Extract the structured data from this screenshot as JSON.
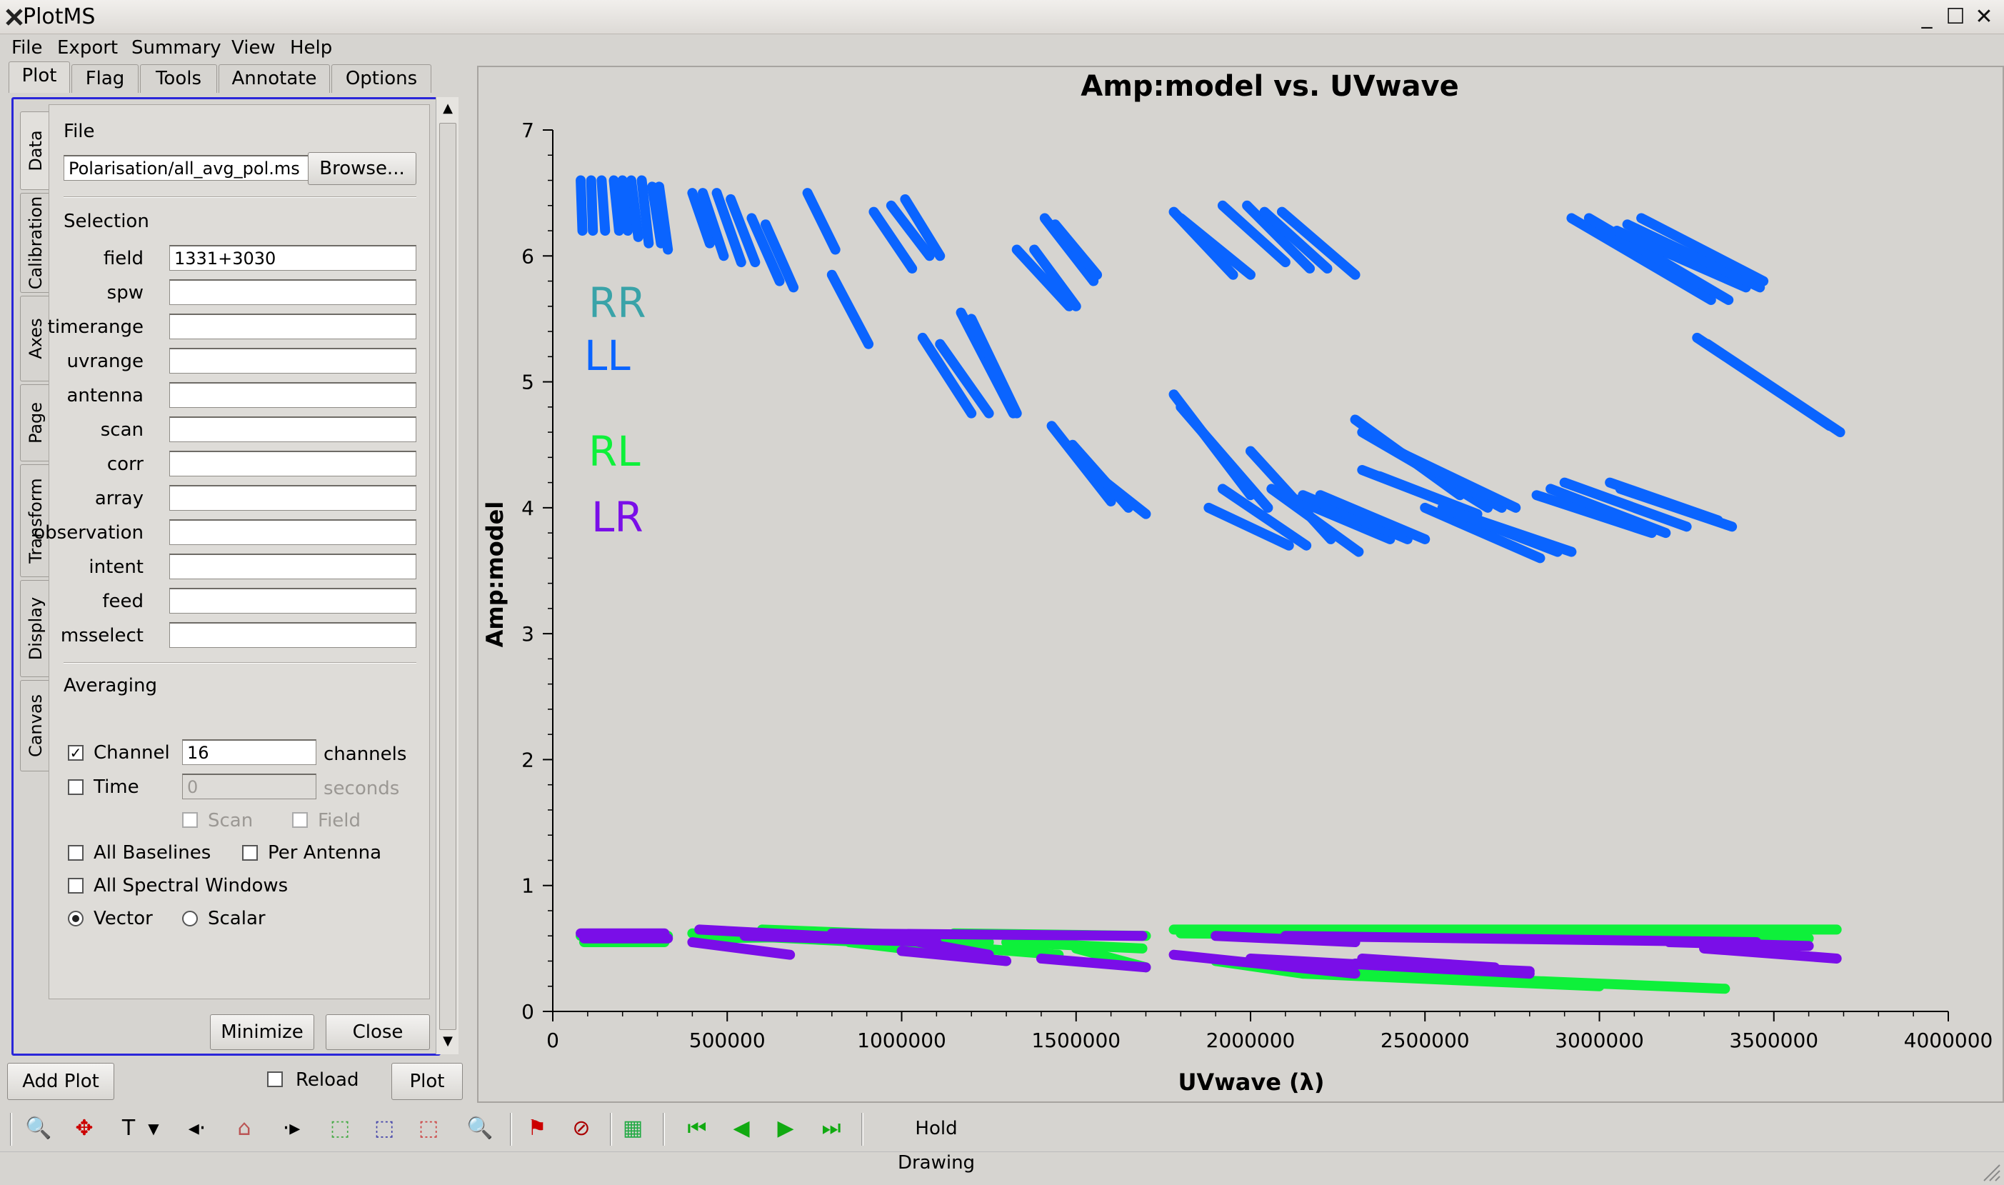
{
  "window": {
    "title": "PlotMS",
    "minimize": "_",
    "maximize": "☐",
    "close": "✕"
  },
  "menu": [
    "File",
    "Export",
    "Summary",
    "View",
    "Help"
  ],
  "tabs": [
    "Plot",
    "Flag",
    "Tools",
    "Annotate",
    "Options"
  ],
  "vertical_tabs": [
    "Data",
    "Calibration",
    "Axes",
    "Page",
    "Transform",
    "Display",
    "Canvas"
  ],
  "data_panel": {
    "file_heading": "File",
    "file_value": "Polarisation/all_avg_pol.ms",
    "browse_label": "Browse...",
    "selection_heading": "Selection",
    "selection_fields": [
      {
        "label": "field",
        "value": "1331+3030"
      },
      {
        "label": "spw",
        "value": ""
      },
      {
        "label": "timerange",
        "value": ""
      },
      {
        "label": "uvrange",
        "value": ""
      },
      {
        "label": "antenna",
        "value": ""
      },
      {
        "label": "scan",
        "value": ""
      },
      {
        "label": "corr",
        "value": ""
      },
      {
        "label": "array",
        "value": ""
      },
      {
        "label": "observation",
        "value": ""
      },
      {
        "label": "intent",
        "value": ""
      },
      {
        "label": "feed",
        "value": ""
      },
      {
        "label": "msselect",
        "value": ""
      }
    ],
    "averaging_heading": "Averaging",
    "channel": {
      "label": "Channel",
      "checked": true,
      "value": "16",
      "unit": "channels"
    },
    "time": {
      "label": "Time",
      "checked": false,
      "value": "0",
      "unit": "seconds"
    },
    "scan_label": "Scan",
    "field_label": "Field",
    "all_baselines_label": "All Baselines",
    "per_antenna_label": "Per Antenna",
    "all_spw_label": "All Spectral Windows",
    "vector_label": "Vector",
    "scalar_label": "Scalar",
    "minimize_label": "Minimize",
    "close_label": "Close"
  },
  "bottom": {
    "add_plot_label": "Add Plot",
    "reload_label": "Reload",
    "plot_label": "Plot"
  },
  "toolbar": {
    "hold_drawing_label": "Hold Drawing"
  },
  "colors": {
    "RR": "#3aa3a8",
    "LL": "#0a64ff",
    "RL": "#0ef03a",
    "LR": "#7a0ee8"
  },
  "chart_data": {
    "type": "scatter",
    "title": "Amp:model vs. UVwave",
    "xlabel": "UVwave (λ)",
    "ylabel": "Amp:model",
    "xlim": [
      0,
      4000000
    ],
    "ylim": [
      0,
      7
    ],
    "xticks": [
      0,
      500000,
      1000000,
      1500000,
      2000000,
      2500000,
      3000000,
      3500000,
      4000000
    ],
    "yticks": [
      0,
      1,
      2,
      3,
      4,
      5,
      6,
      7
    ],
    "grid": false,
    "legend": {
      "placement": "upper-left inside",
      "entries": [
        "RR",
        "LL",
        "RL",
        "LR"
      ]
    },
    "series": [
      {
        "name": "LL",
        "color": "#0a64ff",
        "segments": [
          [
            80000,
            6.6,
            85000,
            6.2
          ],
          [
            110000,
            6.6,
            115000,
            6.2
          ],
          [
            140000,
            6.6,
            150000,
            6.2
          ],
          [
            175000,
            6.6,
            190000,
            6.2
          ],
          [
            200000,
            6.6,
            215000,
            6.2
          ],
          [
            225000,
            6.6,
            245000,
            6.15
          ],
          [
            255000,
            6.6,
            275000,
            6.1
          ],
          [
            285000,
            6.55,
            310000,
            6.1
          ],
          [
            305000,
            6.55,
            330000,
            6.05
          ],
          [
            400000,
            6.5,
            450000,
            6.1
          ],
          [
            430000,
            6.5,
            490000,
            6.0
          ],
          [
            470000,
            6.5,
            540000,
            5.95
          ],
          [
            510000,
            6.45,
            580000,
            5.95
          ],
          [
            570000,
            6.3,
            650000,
            5.8
          ],
          [
            610000,
            6.25,
            690000,
            5.75
          ],
          [
            730000,
            6.5,
            810000,
            6.05
          ],
          [
            800000,
            5.85,
            905000,
            5.3
          ],
          [
            920000,
            6.35,
            1030000,
            5.9
          ],
          [
            970000,
            6.4,
            1080000,
            6.0
          ],
          [
            1010000,
            6.45,
            1110000,
            6.0
          ],
          [
            1060000,
            5.35,
            1200000,
            4.75
          ],
          [
            1110000,
            5.3,
            1250000,
            4.75
          ],
          [
            1170000,
            5.55,
            1320000,
            4.75
          ],
          [
            1200000,
            5.5,
            1330000,
            4.75
          ],
          [
            1330000,
            6.05,
            1480000,
            5.6
          ],
          [
            1380000,
            6.05,
            1500000,
            5.6
          ],
          [
            1410000,
            6.3,
            1550000,
            5.8
          ],
          [
            1440000,
            6.25,
            1560000,
            5.85
          ],
          [
            1430000,
            4.65,
            1600000,
            4.05
          ],
          [
            1490000,
            4.5,
            1650000,
            4.0
          ],
          [
            1540000,
            4.3,
            1700000,
            3.95
          ],
          [
            1780000,
            6.35,
            1950000,
            5.85
          ],
          [
            1800000,
            6.3,
            2000000,
            5.85
          ],
          [
            1920000,
            6.4,
            2100000,
            5.95
          ],
          [
            1990000,
            6.4,
            2170000,
            5.9
          ],
          [
            2040000,
            6.35,
            2220000,
            5.9
          ],
          [
            2090000,
            6.35,
            2300000,
            5.85
          ],
          [
            1780000,
            4.9,
            2000000,
            4.1
          ],
          [
            1800000,
            4.8,
            2050000,
            4.0
          ],
          [
            1880000,
            4.0,
            2110000,
            3.7
          ],
          [
            1920000,
            4.15,
            2160000,
            3.7
          ],
          [
            2000000,
            4.45,
            2230000,
            3.75
          ],
          [
            2060000,
            4.15,
            2310000,
            3.65
          ],
          [
            2100000,
            4.1,
            2400000,
            3.75
          ],
          [
            2150000,
            4.1,
            2450000,
            3.75
          ],
          [
            2200000,
            4.1,
            2500000,
            3.75
          ],
          [
            2300000,
            4.7,
            2600000,
            4.1
          ],
          [
            2320000,
            4.6,
            2630000,
            4.1
          ],
          [
            2360000,
            4.55,
            2680000,
            4.0
          ],
          [
            2390000,
            4.5,
            2720000,
            4.0
          ],
          [
            2420000,
            4.45,
            2760000,
            4.0
          ],
          [
            2320000,
            4.3,
            2600000,
            4.0
          ],
          [
            2370000,
            4.25,
            2650000,
            3.95
          ],
          [
            2500000,
            4.0,
            2830000,
            3.6
          ],
          [
            2550000,
            4.0,
            2880000,
            3.65
          ],
          [
            2600000,
            3.95,
            2920000,
            3.65
          ],
          [
            2820000,
            4.1,
            3150000,
            3.8
          ],
          [
            2860000,
            4.15,
            3190000,
            3.8
          ],
          [
            2900000,
            4.2,
            3250000,
            3.85
          ],
          [
            3030000,
            4.2,
            3340000,
            3.9
          ],
          [
            3060000,
            4.15,
            3380000,
            3.85
          ],
          [
            2920000,
            6.3,
            3320000,
            5.65
          ],
          [
            2970000,
            6.3,
            3370000,
            5.65
          ],
          [
            3050000,
            6.2,
            3420000,
            5.75
          ],
          [
            3080000,
            6.25,
            3460000,
            5.75
          ],
          [
            3120000,
            6.3,
            3470000,
            5.8
          ],
          [
            3280000,
            5.35,
            3660000,
            4.65
          ],
          [
            3310000,
            5.3,
            3690000,
            4.6
          ]
        ]
      },
      {
        "name": "RL",
        "color": "#0ef03a",
        "segments": [
          [
            80000,
            0.6,
            330000,
            0.6
          ],
          [
            90000,
            0.55,
            320000,
            0.55
          ],
          [
            400000,
            0.62,
            900000,
            0.55
          ],
          [
            420000,
            0.58,
            950000,
            0.6
          ],
          [
            600000,
            0.65,
            1100000,
            0.6
          ],
          [
            700000,
            0.58,
            1250000,
            0.55
          ],
          [
            850000,
            0.55,
            1300000,
            0.4
          ],
          [
            1000000,
            0.55,
            1450000,
            0.45
          ],
          [
            1150000,
            0.62,
            1700000,
            0.6
          ],
          [
            1300000,
            0.55,
            1690000,
            0.5
          ],
          [
            1500000,
            0.5,
            1700000,
            0.35
          ],
          [
            1780000,
            0.65,
            3680000,
            0.65
          ],
          [
            1800000,
            0.62,
            3600000,
            0.58
          ],
          [
            1900000,
            0.4,
            2150000,
            0.3
          ],
          [
            2300000,
            0.3,
            3360000,
            0.18
          ],
          [
            2150000,
            0.3,
            3000000,
            0.2
          ]
        ]
      },
      {
        "name": "LR",
        "color": "#7a0ee8",
        "segments": [
          [
            80000,
            0.62,
            320000,
            0.62
          ],
          [
            90000,
            0.58,
            330000,
            0.58
          ],
          [
            400000,
            0.55,
            680000,
            0.45
          ],
          [
            420000,
            0.65,
            900000,
            0.58
          ],
          [
            550000,
            0.6,
            1100000,
            0.55
          ],
          [
            800000,
            0.62,
            1690000,
            0.6
          ],
          [
            1050000,
            0.55,
            1250000,
            0.45
          ],
          [
            1000000,
            0.48,
            1300000,
            0.4
          ],
          [
            1400000,
            0.42,
            1700000,
            0.35
          ],
          [
            1780000,
            0.45,
            2300000,
            0.3
          ],
          [
            1900000,
            0.6,
            2300000,
            0.55
          ],
          [
            2000000,
            0.42,
            2800000,
            0.3
          ],
          [
            2100000,
            0.6,
            3450000,
            0.55
          ],
          [
            2300000,
            0.38,
            2800000,
            0.32
          ],
          [
            2320000,
            0.42,
            2700000,
            0.35
          ],
          [
            3300000,
            0.5,
            3680000,
            0.42
          ],
          [
            3200000,
            0.55,
            3600000,
            0.52
          ]
        ]
      }
    ]
  }
}
